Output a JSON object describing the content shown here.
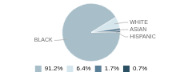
{
  "chart_data": {
    "type": "pie",
    "categories": [
      "BLACK",
      "WHITE",
      "ASIAN",
      "HISPANIC"
    ],
    "values": [
      91.2,
      6.4,
      1.7,
      0.7
    ],
    "value_labels": [
      "91.2%",
      "6.4%",
      "1.7%",
      "0.7%"
    ],
    "colors": [
      "#a8bfc9",
      "#d6e6ed",
      "#5b7f96",
      "#2b4f63"
    ],
    "legend": "bottom"
  }
}
